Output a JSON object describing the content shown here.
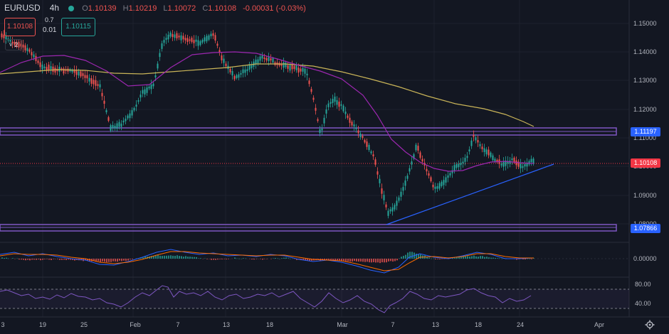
{
  "legend": {
    "symbol": "EURUSD",
    "timeframe": "4h",
    "o_label": "O",
    "o_value": "1.10139",
    "h_label": "H",
    "h_value": "1.10219",
    "l_label": "L",
    "l_value": "1.10072",
    "c_label": "C",
    "c_value": "1.10108",
    "change": "-0.00031 (-0.03%)"
  },
  "trade": {
    "sell_price": "1.10108",
    "spread_top": "0.7",
    "spread_bottom": "0.01",
    "buy_price": "1.10115"
  },
  "indicators_collapsed_count": "2",
  "price_axis": {
    "ticks": [
      "1.15000",
      "1.14000",
      "1.13000",
      "1.12000",
      "1.11000",
      "1.10000",
      "1.09000",
      "1.08000"
    ],
    "badges": {
      "upper_level": "1.11197",
      "current": "1.10108",
      "lower_level": "1.07866"
    }
  },
  "macd_axis": {
    "ticks": [
      "0.00000"
    ]
  },
  "rsi_axis": {
    "ticks": [
      "80.00",
      "40.00"
    ]
  },
  "time_axis": {
    "labels": [
      "3",
      "19",
      "25",
      "Feb",
      "7",
      "13",
      "18",
      "Mar",
      "7",
      "13",
      "18",
      "24",
      "Apr"
    ]
  },
  "colors": {
    "background": "#131722",
    "up": "#26a69a",
    "down": "#ef5350",
    "ma_fast": "#9c27b0",
    "ma_slow": "#c9b458",
    "zone": "#7e57c2",
    "trendline": "#2962ff",
    "macd": "#2962ff",
    "signal": "#ff6d00",
    "rsi": "#7e57c2",
    "badge_upper": "#2962ff",
    "badge_current": "#f23645",
    "badge_lower": "#2962ff"
  },
  "icons": {
    "settings": "gear-icon",
    "market_status": "status-dot-icon",
    "collapse": "chevron-down-icon"
  }
}
